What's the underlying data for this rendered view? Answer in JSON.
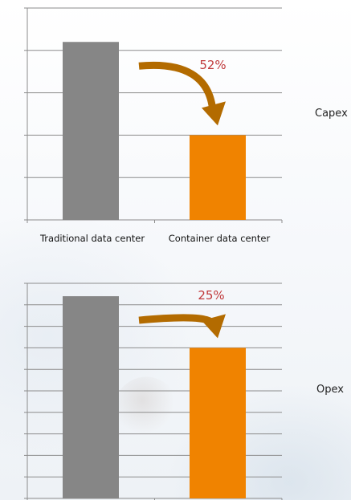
{
  "chart_data": [
    {
      "type": "bar",
      "categories": [
        "Traditional data center",
        "Container data center"
      ],
      "values": [
        4.2,
        2.0
      ],
      "ylim": [
        0,
        5
      ],
      "grid": true,
      "colors": [
        "#868686",
        "#f08300"
      ],
      "arrow_color": "#b36b00",
      "annotation": "52%",
      "annotation_color": "#c0393b",
      "side_label": "Capex"
    },
    {
      "type": "bar",
      "categories": [
        "Traditional data center",
        "Container data center"
      ],
      "values": [
        9.4,
        7.0
      ],
      "ylim": [
        0,
        10
      ],
      "grid": true,
      "colors": [
        "#868686",
        "#f08300"
      ],
      "arrow_color": "#b36b00",
      "annotation": "25%",
      "annotation_color": "#c0393b",
      "side_label": "Opex"
    }
  ]
}
